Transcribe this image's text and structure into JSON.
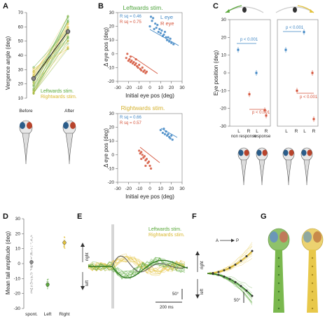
{
  "panels": {
    "a": {
      "letter": "A",
      "ylabel": "Vergence angle (deg)",
      "yticks": [
        "70",
        "60",
        "50",
        "40",
        "30",
        "20",
        "10"
      ],
      "legend_left": "Leftwards stim.",
      "legend_right": "Rightwards stim.",
      "xticks": [
        "Before",
        "After"
      ]
    },
    "b": {
      "letter": "B",
      "title_top": "Leftwards stim.",
      "title_bottom": "Rightwards stim.",
      "r_left_top": "R sq = 0.46",
      "r_right_top": "R sq = 0.75",
      "r_left_bottom": "R sq = 0.66",
      "r_right_bottom": "R sq = 0.57",
      "legend_l": "L eye",
      "legend_r": "R eye",
      "ylabel": "Δ eye pos (deg)",
      "xlabel": "Initial eye pos (deg)",
      "yticks_top": [
        "30",
        "20",
        "10",
        "0",
        "-10",
        "-20"
      ],
      "yticks_bottom": [
        "30",
        "20",
        "10",
        "0",
        "-10",
        "-20"
      ],
      "xticks": [
        "-30",
        "-20",
        "-10",
        "0",
        "10",
        "20",
        "30"
      ]
    },
    "c": {
      "letter": "C",
      "ylabel": "Eye position (deg)",
      "yticks": [
        "30",
        "20",
        "10",
        "0",
        "-10",
        "-20",
        "-30"
      ],
      "p1": "p < 0.001",
      "p2": "p < 0.001",
      "p3": "p < 0.001",
      "p4": "p < 0.001",
      "xticks": [
        "L",
        "R",
        "L",
        "R",
        "L",
        "R",
        "L",
        "R"
      ],
      "group1": "non response",
      "group2": "response"
    },
    "d": {
      "letter": "D",
      "ylabel": "Mean tail amplitude (deg)",
      "yticks": [
        "30",
        "20",
        "10",
        "0",
        "-10",
        "-20",
        "-30"
      ],
      "xticks": [
        "spont.",
        "Left",
        "Right"
      ]
    },
    "e": {
      "letter": "E",
      "legend_left": "Leftwards stim.",
      "legend_right": "Rightwards stim.",
      "right_label": "right",
      "left_label": "left",
      "scale_deg": "50°",
      "scale_ms": "200 ms"
    },
    "f": {
      "letter": "F",
      "axis_a": "A",
      "axis_p": "P",
      "right_label": "right",
      "left_label": "left",
      "scale_deg": "50°"
    },
    "g": {
      "letter": "G"
    }
  },
  "colors": {
    "green": "#5aa83a",
    "yellow": "#e3c23a",
    "blue": "#3f86c4",
    "red": "#d4533a",
    "gray": "#8a8a8a"
  },
  "chart_data": [
    {
      "type": "line",
      "panel": "A",
      "x": [
        "Before",
        "After"
      ],
      "series": [
        {
          "values": [
            21,
            55
          ]
        }
      ],
      "ylim": [
        10,
        70
      ]
    },
    {
      "type": "scatter",
      "panel": "B top",
      "xlim": [
        -30,
        30
      ],
      "ylim": [
        -20,
        30
      ],
      "series": [
        {
          "name": "L eye",
          "points": [
            [
              0,
              20
            ],
            [
              2,
              24
            ],
            [
              4,
              18
            ],
            [
              5,
              22
            ],
            [
              6,
              19
            ],
            [
              8,
              16
            ],
            [
              9,
              18
            ],
            [
              10,
              15
            ],
            [
              11,
              17
            ],
            [
              12,
              13
            ],
            [
              13,
              14
            ],
            [
              15,
              12
            ],
            [
              16,
              10
            ],
            [
              17,
              12
            ],
            [
              18,
              9
            ],
            [
              19,
              11
            ],
            [
              20,
              8
            ],
            [
              22,
              7
            ],
            [
              3,
              26
            ],
            [
              7,
              21
            ],
            [
              14,
              16
            ],
            [
              1,
              27
            ]
          ]
        },
        {
          "name": "R eye",
          "points": [
            [
              -22,
              -3
            ],
            [
              -20,
              -5
            ],
            [
              -19,
              -4
            ],
            [
              -18,
              -6
            ],
            [
              -17,
              -5
            ],
            [
              -16,
              -7
            ],
            [
              -15,
              -6
            ],
            [
              -14,
              -8
            ],
            [
              -13,
              -7
            ],
            [
              -12,
              -9
            ],
            [
              -11,
              -10
            ],
            [
              -10,
              -8
            ],
            [
              -9,
              -11
            ],
            [
              -8,
              -12
            ],
            [
              -7,
              -10
            ],
            [
              -6,
              -13
            ],
            [
              -5,
              -12
            ],
            [
              -4,
              -14
            ],
            [
              -3,
              -13
            ],
            [
              -21,
              0
            ],
            [
              -18,
              -2
            ],
            [
              -13,
              -4
            ]
          ]
        }
      ]
    },
    {
      "type": "scatter",
      "panel": "B bottom",
      "xlim": [
        -30,
        30
      ],
      "ylim": [
        -20,
        30
      ],
      "series": [
        {
          "name": "L eye",
          "points": [
            [
              10,
              18
            ],
            [
              12,
              16
            ],
            [
              13,
              19
            ],
            [
              14,
              15
            ],
            [
              15,
              17
            ],
            [
              16,
              14
            ],
            [
              17,
              15
            ],
            [
              18,
              13
            ],
            [
              19,
              12
            ],
            [
              20,
              14
            ],
            [
              21,
              11
            ]
          ]
        },
        {
          "name": "R eye",
          "points": [
            [
              -10,
              3
            ],
            [
              -9,
              1
            ],
            [
              -8,
              2
            ],
            [
              -7,
              0
            ],
            [
              -6,
              -2
            ],
            [
              -5,
              -1
            ],
            [
              -4,
              -4
            ],
            [
              -3,
              -3
            ],
            [
              -2,
              -6
            ],
            [
              -1,
              -5
            ],
            [
              0,
              -8
            ],
            [
              1,
              -10
            ],
            [
              -8,
              -3
            ],
            [
              -4,
              -8
            ]
          ]
        }
      ]
    },
    {
      "type": "scatter",
      "panel": "C",
      "ylim": [
        -30,
        30
      ],
      "series": [
        {
          "name": "left fish",
          "points": [
            [
              "non response L",
              13
            ],
            [
              "non response R",
              -12
            ],
            [
              "response L",
              0
            ],
            [
              "response R",
              -21
            ],
            [
              "response R b",
              -24
            ]
          ]
        },
        {
          "name": "right fish",
          "points": [
            [
              "non response L",
              13
            ],
            [
              "non response R",
              -10
            ],
            [
              "response L",
              23
            ],
            [
              "response R",
              0
            ],
            [
              "response R b",
              -26
            ]
          ]
        }
      ]
    },
    {
      "type": "scatter",
      "panel": "D",
      "categories": [
        "spont.",
        "Left",
        "Right"
      ],
      "values": [
        1,
        -14,
        14
      ],
      "ylim": [
        -30,
        30
      ]
    }
  ]
}
